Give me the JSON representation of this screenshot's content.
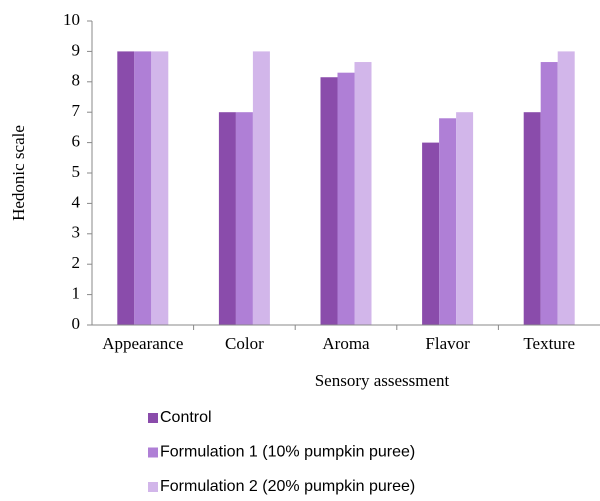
{
  "chart_data": {
    "type": "bar",
    "x_label": "Sensory assessment",
    "y_label": "Hedonic scale",
    "categories": [
      "Appearance",
      "Color",
      "Aroma",
      "Flavor",
      "Texture"
    ],
    "series": [
      {
        "name": "Control",
        "color": "#8a4cab",
        "values": [
          9,
          7,
          8.15,
          6,
          7
        ]
      },
      {
        "name": "Formulation 1 (10% pumpkin puree)",
        "color": "#af7fd6",
        "values": [
          9,
          7,
          8.3,
          6.8,
          8.65
        ]
      },
      {
        "name": "Formulation 2 (20% pumpkin puree)",
        "color": "#d2b6ea",
        "values": [
          9,
          9,
          8.65,
          7,
          9
        ]
      }
    ],
    "ylim": [
      0,
      10
    ],
    "yticks": [
      0,
      1,
      2,
      3,
      4,
      5,
      6,
      7,
      8,
      9,
      10
    ],
    "grid": false,
    "legend": "bottom"
  }
}
